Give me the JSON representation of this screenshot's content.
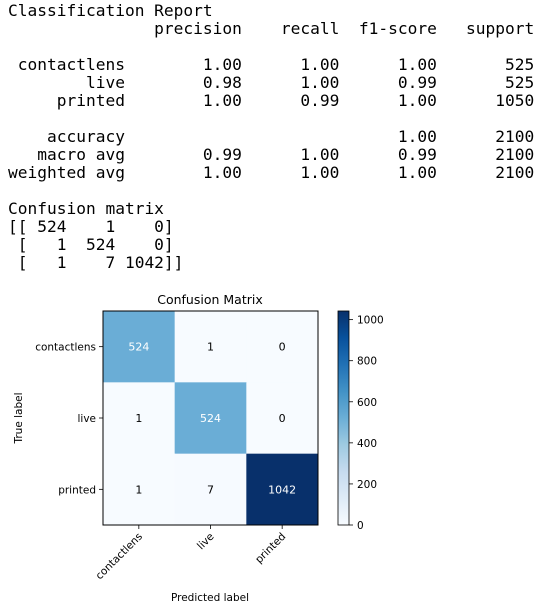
{
  "report": {
    "title": "Classification Report",
    "columns": [
      "precision",
      "recall",
      "f1-score",
      "support"
    ],
    "rows": [
      {
        "label": "contactlens",
        "precision": "1.00",
        "recall": "1.00",
        "f1": "1.00",
        "support": "525"
      },
      {
        "label": "live",
        "precision": "0.98",
        "recall": "1.00",
        "f1": "0.99",
        "support": "525"
      },
      {
        "label": "printed",
        "precision": "1.00",
        "recall": "0.99",
        "f1": "1.00",
        "support": "1050"
      }
    ],
    "summary": [
      {
        "label": "accuracy",
        "precision": "",
        "recall": "",
        "f1": "1.00",
        "support": "2100"
      },
      {
        "label": "macro avg",
        "precision": "0.99",
        "recall": "1.00",
        "f1": "0.99",
        "support": "2100"
      },
      {
        "label": "weighted avg",
        "precision": "1.00",
        "recall": "1.00",
        "f1": "1.00",
        "support": "2100"
      }
    ]
  },
  "matrix_text": {
    "title": "Confusion matrix",
    "lines": [
      "[[ 524    1    0]",
      " [   1  524    0]",
      " [   1    7 1042]]"
    ]
  },
  "chart_data": {
    "type": "heatmap",
    "title": "Confusion Matrix",
    "xlabel": "Predicted label",
    "ylabel": "True label",
    "x_categories": [
      "contactlens",
      "live",
      "printed"
    ],
    "y_categories": [
      "contactlens",
      "live",
      "printed"
    ],
    "values": [
      [
        524,
        1,
        0
      ],
      [
        1,
        524,
        0
      ],
      [
        1,
        7,
        1042
      ]
    ],
    "colormap": "Blues",
    "vmin": 0,
    "vmax": 1042,
    "colorbar_ticks": [
      0,
      200,
      400,
      600,
      800,
      1000
    ],
    "text_color_dark_bg": "#ffffff",
    "text_color_light_bg": "#000000"
  }
}
